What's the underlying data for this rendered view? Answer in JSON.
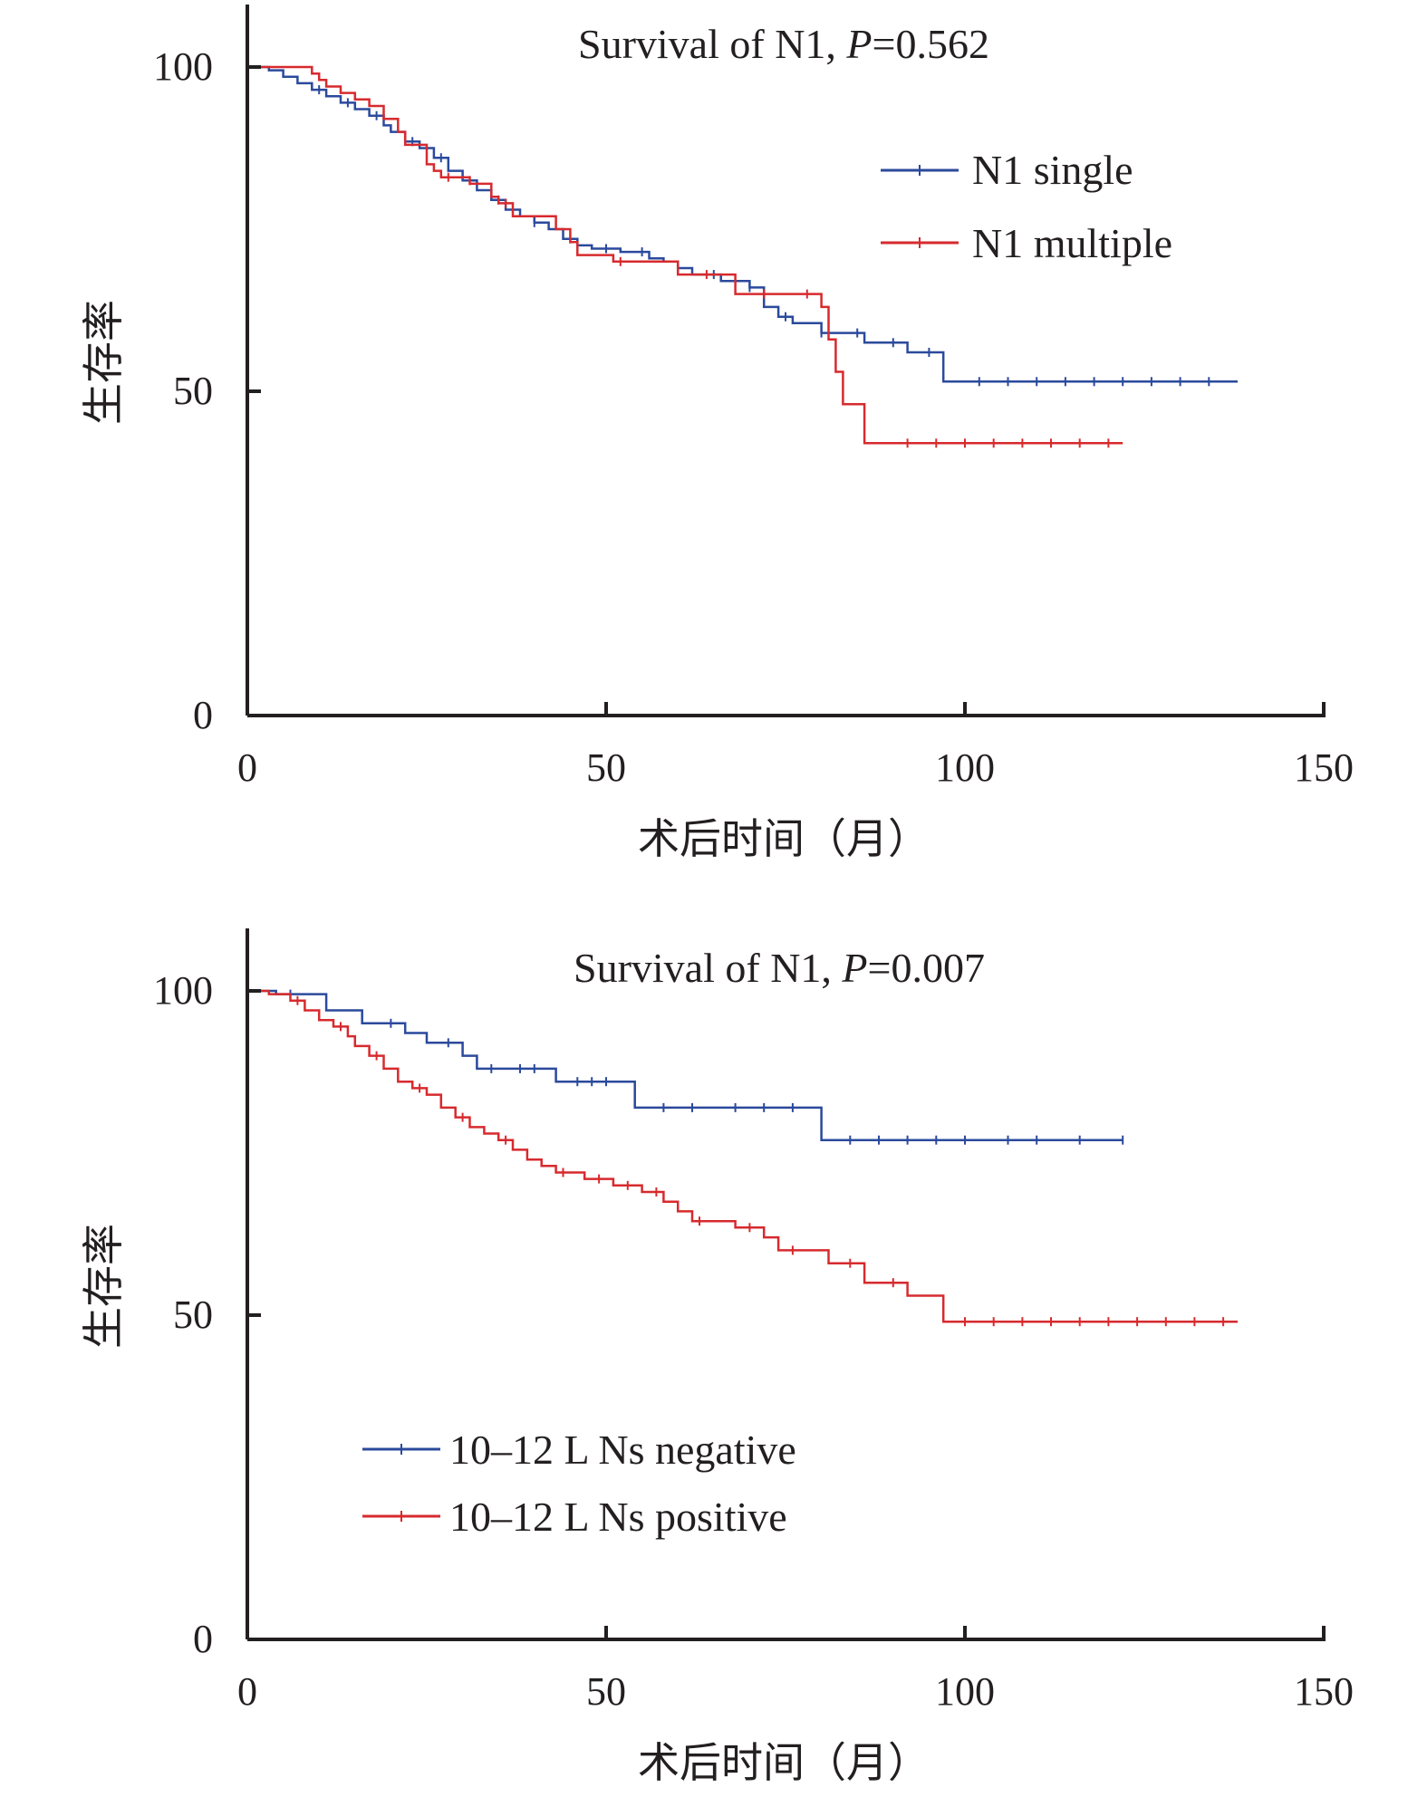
{
  "colors": {
    "blue": "#2b4a9c",
    "red": "#d72a2e",
    "axis": "#231f20"
  },
  "chart_data": [
    {
      "type": "line",
      "subtype": "kaplan-meier",
      "title_prefix": "Survival of N1, ",
      "title_p": "P",
      "title_value": "=0.562",
      "xlabel": "术后时间（月）",
      "ylabel": "生存率",
      "xlim": [
        0,
        150
      ],
      "ylim": [
        0,
        100
      ],
      "xticks": [
        "0",
        "50",
        "100",
        "150"
      ],
      "yticks": [
        "0",
        "50",
        "100"
      ],
      "grid": false,
      "legend_position": "top-right",
      "series": [
        {
          "name": "N1 single",
          "color": "#2b4a9c",
          "steps": [
            [
              0,
              100
            ],
            [
              3,
              99.5
            ],
            [
              5,
              98.5
            ],
            [
              7,
              97.5
            ],
            [
              9,
              96.5
            ],
            [
              11,
              95.5
            ],
            [
              13,
              94.5
            ],
            [
              15,
              93.5
            ],
            [
              17,
              92.5
            ],
            [
              19,
              91
            ],
            [
              20,
              90
            ],
            [
              22,
              88.5
            ],
            [
              24,
              87.5
            ],
            [
              26,
              86
            ],
            [
              28,
              84
            ],
            [
              30,
              82.5
            ],
            [
              32,
              81
            ],
            [
              34,
              79.5
            ],
            [
              36,
              78
            ],
            [
              38,
              77
            ],
            [
              40,
              76
            ],
            [
              42,
              75
            ],
            [
              44,
              73.5
            ],
            [
              46,
              72.5
            ],
            [
              48,
              72
            ],
            [
              52,
              71.5
            ],
            [
              56,
              70.5
            ],
            [
              58,
              70
            ],
            [
              60,
              69
            ],
            [
              62,
              68
            ],
            [
              66,
              67
            ],
            [
              70,
              66
            ],
            [
              72,
              63
            ],
            [
              74,
              61.5
            ],
            [
              76,
              60.5
            ],
            [
              80,
              59
            ],
            [
              86,
              57.5
            ],
            [
              92,
              56
            ],
            [
              97,
              51.5
            ],
            [
              138,
              51.5
            ]
          ],
          "censors": [
            10,
            14,
            18,
            23,
            27,
            31,
            35,
            40,
            45,
            50,
            55,
            60,
            65,
            70,
            75,
            80,
            85,
            90,
            95,
            102,
            106,
            110,
            114,
            118,
            122,
            126,
            130,
            134
          ]
        },
        {
          "name": "N1 multiple",
          "color": "#d72a2e",
          "steps": [
            [
              0,
              100
            ],
            [
              9,
              99
            ],
            [
              10,
              98
            ],
            [
              11,
              97
            ],
            [
              13,
              96
            ],
            [
              15,
              95
            ],
            [
              17,
              94
            ],
            [
              19,
              92
            ],
            [
              21,
              90
            ],
            [
              22,
              88
            ],
            [
              25,
              88
            ],
            [
              25,
              85
            ],
            [
              26,
              84
            ],
            [
              27,
              83
            ],
            [
              31,
              83
            ],
            [
              31,
              82
            ],
            [
              34,
              80
            ],
            [
              35,
              79
            ],
            [
              37,
              77
            ],
            [
              40,
              77
            ],
            [
              43,
              75
            ],
            [
              45,
              73
            ],
            [
              46,
              71
            ],
            [
              50,
              71
            ],
            [
              51,
              70
            ],
            [
              56,
              70
            ],
            [
              60,
              68
            ],
            [
              67,
              68
            ],
            [
              68,
              65
            ],
            [
              80,
              65
            ],
            [
              80,
              63
            ],
            [
              81,
              58
            ],
            [
              82,
              53
            ],
            [
              83,
              48
            ],
            [
              86,
              48
            ],
            [
              86,
              42
            ],
            [
              122,
              42
            ]
          ],
          "censors": [
            28,
            36,
            52,
            64,
            72,
            78,
            92,
            96,
            100,
            104,
            108,
            112,
            116,
            120
          ]
        }
      ]
    },
    {
      "type": "line",
      "subtype": "kaplan-meier",
      "title_prefix": "Survival of N1, ",
      "title_p": "P",
      "title_value": "=0.007",
      "xlabel": "术后时间（月）",
      "ylabel": "生存率",
      "xlim": [
        0,
        150
      ],
      "ylim": [
        0,
        100
      ],
      "xticks": [
        "0",
        "50",
        "100",
        "150"
      ],
      "yticks": [
        "0",
        "50",
        "100"
      ],
      "grid": false,
      "legend_position": "bottom-left",
      "series": [
        {
          "name": "10–12 L Ns negative",
          "color": "#2b4a9c",
          "steps": [
            [
              0,
              100
            ],
            [
              4,
              99.5
            ],
            [
              11,
              97
            ],
            [
              16,
              95
            ],
            [
              22,
              93.5
            ],
            [
              25,
              92
            ],
            [
              30,
              90
            ],
            [
              32,
              88
            ],
            [
              43,
              88
            ],
            [
              43,
              86
            ],
            [
              53,
              86
            ],
            [
              54,
              82
            ],
            [
              80,
              82
            ],
            [
              80,
              77
            ],
            [
              122,
              77
            ]
          ],
          "censors": [
            6,
            20,
            28,
            34,
            38,
            40,
            46,
            48,
            50,
            58,
            62,
            68,
            72,
            76,
            84,
            88,
            92,
            96,
            100,
            106,
            110,
            116,
            122
          ]
        },
        {
          "name": "10–12 L Ns positive",
          "color": "#d72a2e",
          "steps": [
            [
              0,
              100
            ],
            [
              3,
              99.5
            ],
            [
              6,
              98.5
            ],
            [
              8,
              97
            ],
            [
              10,
              95.5
            ],
            [
              12,
              94.5
            ],
            [
              14,
              93
            ],
            [
              15,
              91.5
            ],
            [
              17,
              90
            ],
            [
              19,
              88
            ],
            [
              21,
              86
            ],
            [
              23,
              85
            ],
            [
              25,
              84
            ],
            [
              27,
              82
            ],
            [
              29,
              80.5
            ],
            [
              31,
              79
            ],
            [
              33,
              78
            ],
            [
              35,
              77
            ],
            [
              37,
              75.5
            ],
            [
              39,
              74
            ],
            [
              41,
              73
            ],
            [
              43,
              72
            ],
            [
              47,
              71
            ],
            [
              51,
              70
            ],
            [
              55,
              69
            ],
            [
              58,
              67.5
            ],
            [
              60,
              66
            ],
            [
              62,
              64.5
            ],
            [
              67,
              64.5
            ],
            [
              68,
              63.5
            ],
            [
              72,
              62
            ],
            [
              74,
              60
            ],
            [
              80,
              60
            ],
            [
              81,
              58
            ],
            [
              86,
              55
            ],
            [
              92,
              53
            ],
            [
              97,
              49
            ],
            [
              138,
              49
            ]
          ],
          "censors": [
            7,
            13,
            18,
            24,
            30,
            36,
            44,
            49,
            53,
            57,
            63,
            70,
            76,
            84,
            90,
            100,
            104,
            108,
            112,
            116,
            120,
            124,
            128,
            132,
            136
          ]
        }
      ]
    }
  ]
}
